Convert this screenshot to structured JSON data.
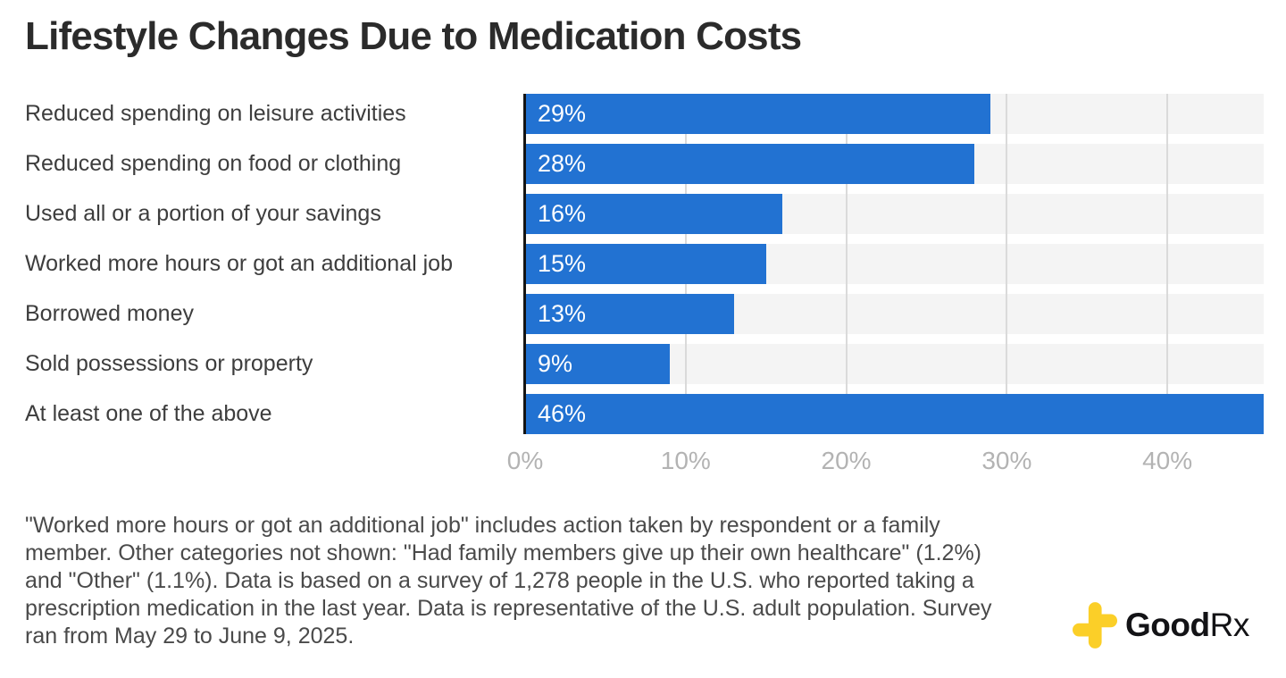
{
  "title": "Lifestyle Changes Due to Medication Costs",
  "chart_data": {
    "type": "bar",
    "orientation": "horizontal",
    "title": "Lifestyle Changes Due to Medication Costs",
    "categories": [
      "Reduced spending on leisure activities",
      "Reduced spending on food or clothing",
      "Used all or a portion of your savings",
      "Worked more hours or got an additional job",
      "Borrowed money",
      "Sold possessions or property",
      "At least one of the above"
    ],
    "values": [
      29,
      28,
      16,
      15,
      13,
      9,
      46
    ],
    "value_labels": [
      "29%",
      "28%",
      "16%",
      "15%",
      "13%",
      "9%",
      "46%"
    ],
    "xlabel": "",
    "ylabel": "",
    "xlim": [
      0,
      46
    ],
    "x_ticks": [
      0,
      10,
      20,
      30,
      40
    ],
    "x_tick_labels": [
      "0%",
      "10%",
      "20%",
      "30%",
      "40%"
    ],
    "grid": true,
    "legend": false,
    "bar_color": "#2272d2",
    "track_color": "#f4f4f4",
    "gridline_color": "#dadada",
    "axis_line_color": "#141414",
    "value_label_color": "#ffffff",
    "tick_label_color": "#b3b3b3"
  },
  "footnote": "\"Worked more hours or got an additional job\" includes action taken by respondent or a family member. Other categories not shown: \"Had family members give up their own healthcare\" (1.2%) and \"Other\" (1.1%). Data is based on a survey of 1,278 people in the U.S. who reported taking a prescription medication in the last year. Data is representative of the U.S. adult population. Survey ran from May 29 to June 9, 2025.",
  "logo": {
    "brand_bold": "Good",
    "brand_light": "Rx",
    "cross_color": "#fbcf28"
  }
}
